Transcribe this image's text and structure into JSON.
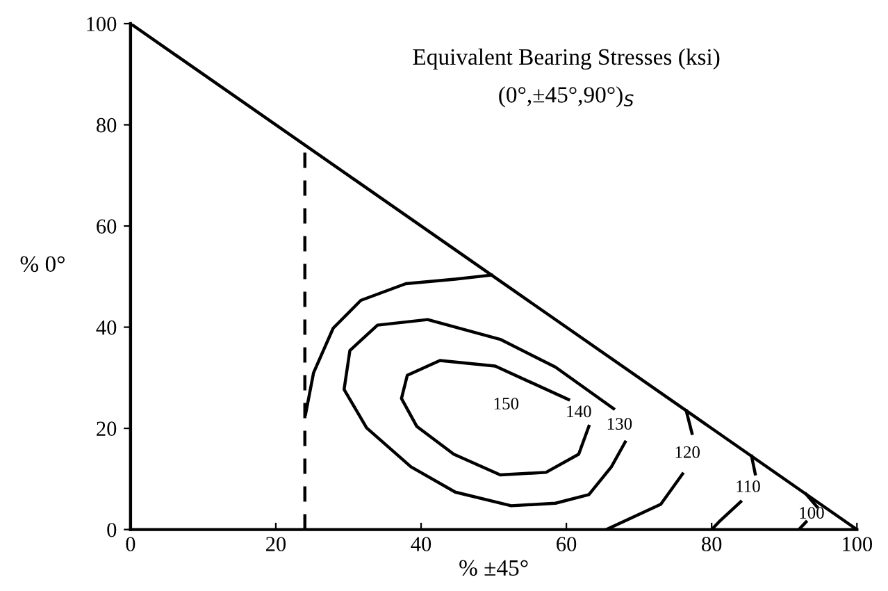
{
  "chart_data": {
    "type": "line",
    "title": "Equivalent Bearing Stresses (ksi)",
    "subtitle": "(0°,±45°,90°)$_{S}$",
    "xlabel": "% ±45°",
    "ylabel": "% 0°",
    "xlim": [
      0,
      100
    ],
    "ylim": [
      0,
      100
    ],
    "xticks": [
      0,
      20,
      40,
      60,
      80,
      100
    ],
    "yticks": [
      0,
      20,
      40,
      60,
      80,
      100
    ],
    "grid": false,
    "legend": false,
    "marker": "none",
    "series": [
      {
        "color": "#000000",
        "x": [
          0,
          100
        ],
        "values": [
          100,
          0
        ]
      },
      {
        "color": "#000000",
        "line_style": "dashed",
        "x": [
          24,
          24
        ],
        "values": [
          0,
          76
        ]
      },
      {
        "name": "140",
        "color": "#000000",
        "x": [
          60.3,
          50.2,
          42.6,
          38.1,
          37.3,
          39.4,
          44.5,
          50.9,
          57.2,
          61.7,
          63.1
        ],
        "values": [
          25.7,
          32.3,
          33.4,
          30.5,
          25.9,
          20.4,
          14.9,
          10.8,
          11.3,
          14.9,
          20.4
        ]
      },
      {
        "name": "130",
        "color": "#000000",
        "x": [
          66.5,
          58.5,
          50.9,
          40.9,
          34.0,
          30.2,
          29.4,
          32.5,
          38.6,
          44.7,
          52.4,
          58.5,
          63.1,
          66.2,
          68.1
        ],
        "values": [
          23.9,
          32.1,
          37.6,
          41.5,
          40.4,
          35.4,
          27.7,
          20.1,
          12.4,
          7.4,
          4.7,
          5.2,
          6.9,
          12.4,
          17.3
        ]
      },
      {
        "color": "#000000",
        "x": [
          24.1,
          25.2,
          27.9,
          31.7,
          37.9,
          44.7,
          49.7
        ],
        "values": [
          22.8,
          31.0,
          39.8,
          45.3,
          48.6,
          49.5,
          50.3
        ]
      },
      {
        "name": "120",
        "color": "#000000",
        "x": [
          76.5,
          77.3,
          null,
          76.0,
          73.0,
          65.5
        ],
        "values": [
          23.5,
          19.0,
          null,
          11.0,
          5.0,
          0
        ]
      },
      {
        "name": "110",
        "color": "#000000",
        "x": [
          85.5,
          86.0,
          null,
          84.0,
          81.0,
          80.0
        ],
        "values": [
          14.5,
          11.0,
          null,
          5.5,
          1.5,
          0
        ]
      },
      {
        "name": "100",
        "color": "#000000",
        "x": [
          93.0,
          94.5,
          null,
          93.0,
          92.0
        ],
        "values": [
          7.0,
          4.5,
          null,
          1.5,
          0
        ]
      }
    ],
    "annotations": [
      "150"
    ]
  }
}
